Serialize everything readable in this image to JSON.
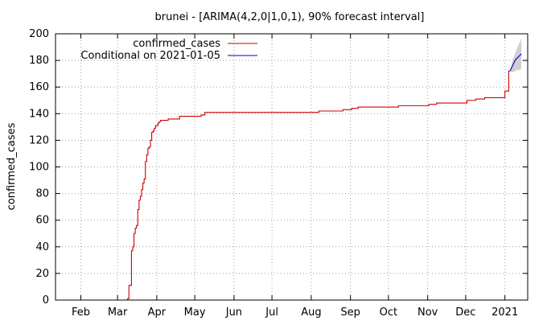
{
  "chart_data": {
    "type": "line",
    "title": "brunei -  [ARIMA(4,2,0|1,0,1), 90% forecast interval]",
    "xlabel": "",
    "ylabel": "confirmed_cases",
    "ylim": [
      0,
      200
    ],
    "yticks": [
      0,
      20,
      40,
      60,
      80,
      100,
      120,
      140,
      160,
      180,
      200
    ],
    "xlim": [
      "2020-01-12",
      "2021-01-19"
    ],
    "xticks": [
      {
        "date": "2020-02-01",
        "label": "Feb"
      },
      {
        "date": "2020-03-01",
        "label": "Mar"
      },
      {
        "date": "2020-04-01",
        "label": "Apr"
      },
      {
        "date": "2020-05-01",
        "label": "May"
      },
      {
        "date": "2020-06-01",
        "label": "Jun"
      },
      {
        "date": "2020-07-01",
        "label": "Jul"
      },
      {
        "date": "2020-08-01",
        "label": "Aug"
      },
      {
        "date": "2020-09-01",
        "label": "Sep"
      },
      {
        "date": "2020-10-01",
        "label": "Oct"
      },
      {
        "date": "2020-11-01",
        "label": "Nov"
      },
      {
        "date": "2020-12-01",
        "label": "Dec"
      },
      {
        "date": "2021-01-01",
        "label": "2021"
      }
    ],
    "grid": true,
    "legend_position": "top-left",
    "series": [
      {
        "name": "confirmed_cases",
        "color": "#cc0000",
        "step": true,
        "points": [
          [
            "2020-03-08",
            0
          ],
          [
            "2020-03-09",
            1
          ],
          [
            "2020-03-10",
            11
          ],
          [
            "2020-03-11",
            11
          ],
          [
            "2020-03-12",
            37
          ],
          [
            "2020-03-13",
            40
          ],
          [
            "2020-03-14",
            50
          ],
          [
            "2020-03-15",
            54
          ],
          [
            "2020-03-16",
            56
          ],
          [
            "2020-03-17",
            68
          ],
          [
            "2020-03-18",
            75
          ],
          [
            "2020-03-19",
            78
          ],
          [
            "2020-03-20",
            83
          ],
          [
            "2020-03-21",
            88
          ],
          [
            "2020-03-22",
            91
          ],
          [
            "2020-03-23",
            104
          ],
          [
            "2020-03-24",
            109
          ],
          [
            "2020-03-25",
            114
          ],
          [
            "2020-03-26",
            115
          ],
          [
            "2020-03-27",
            120
          ],
          [
            "2020-03-28",
            126
          ],
          [
            "2020-03-29",
            127
          ],
          [
            "2020-03-30",
            129
          ],
          [
            "2020-03-31",
            131
          ],
          [
            "2020-04-01",
            131
          ],
          [
            "2020-04-02",
            133
          ],
          [
            "2020-04-03",
            134
          ],
          [
            "2020-04-04",
            135
          ],
          [
            "2020-04-09",
            135
          ],
          [
            "2020-04-10",
            136
          ],
          [
            "2020-04-18",
            136
          ],
          [
            "2020-04-19",
            138
          ],
          [
            "2020-05-05",
            138
          ],
          [
            "2020-05-06",
            139
          ],
          [
            "2020-05-08",
            139
          ],
          [
            "2020-05-09",
            141
          ],
          [
            "2020-08-06",
            141
          ],
          [
            "2020-08-07",
            142
          ],
          [
            "2020-08-25",
            142
          ],
          [
            "2020-08-26",
            143
          ],
          [
            "2020-09-01",
            143
          ],
          [
            "2020-09-02",
            144
          ],
          [
            "2020-09-06",
            144
          ],
          [
            "2020-09-07",
            145
          ],
          [
            "2020-10-08",
            145
          ],
          [
            "2020-10-09",
            146
          ],
          [
            "2020-11-01",
            146
          ],
          [
            "2020-11-02",
            147
          ],
          [
            "2020-11-07",
            147
          ],
          [
            "2020-11-08",
            148
          ],
          [
            "2020-11-30",
            148
          ],
          [
            "2020-12-01",
            148
          ],
          [
            "2020-12-02",
            150
          ],
          [
            "2020-12-08",
            150
          ],
          [
            "2020-12-09",
            151
          ],
          [
            "2020-12-15",
            151
          ],
          [
            "2020-12-16",
            152
          ],
          [
            "2020-12-31",
            152
          ],
          [
            "2021-01-01",
            157
          ],
          [
            "2021-01-03",
            157
          ],
          [
            "2021-01-04",
            172
          ],
          [
            "2021-01-05",
            172
          ]
        ]
      },
      {
        "name": "Conditional on 2021-01-05",
        "color": "#0000cc",
        "step": false,
        "points": [
          [
            "2021-01-05",
            172
          ],
          [
            "2021-01-06",
            174
          ],
          [
            "2021-01-07",
            176
          ],
          [
            "2021-01-08",
            178
          ],
          [
            "2021-01-09",
            180
          ],
          [
            "2021-01-10",
            181
          ],
          [
            "2021-01-11",
            182
          ],
          [
            "2021-01-12",
            183
          ],
          [
            "2021-01-13",
            184
          ],
          [
            "2021-01-14",
            185
          ]
        ]
      }
    ],
    "forecast_interval": {
      "color": "#d0d0d0",
      "points": [
        [
          "2021-01-05",
          172,
          172
        ],
        [
          "2021-01-07",
          171,
          180
        ],
        [
          "2021-01-09",
          172,
          185
        ],
        [
          "2021-01-11",
          173,
          190
        ],
        [
          "2021-01-13",
          173,
          194
        ],
        [
          "2021-01-14",
          174,
          197
        ]
      ]
    }
  }
}
